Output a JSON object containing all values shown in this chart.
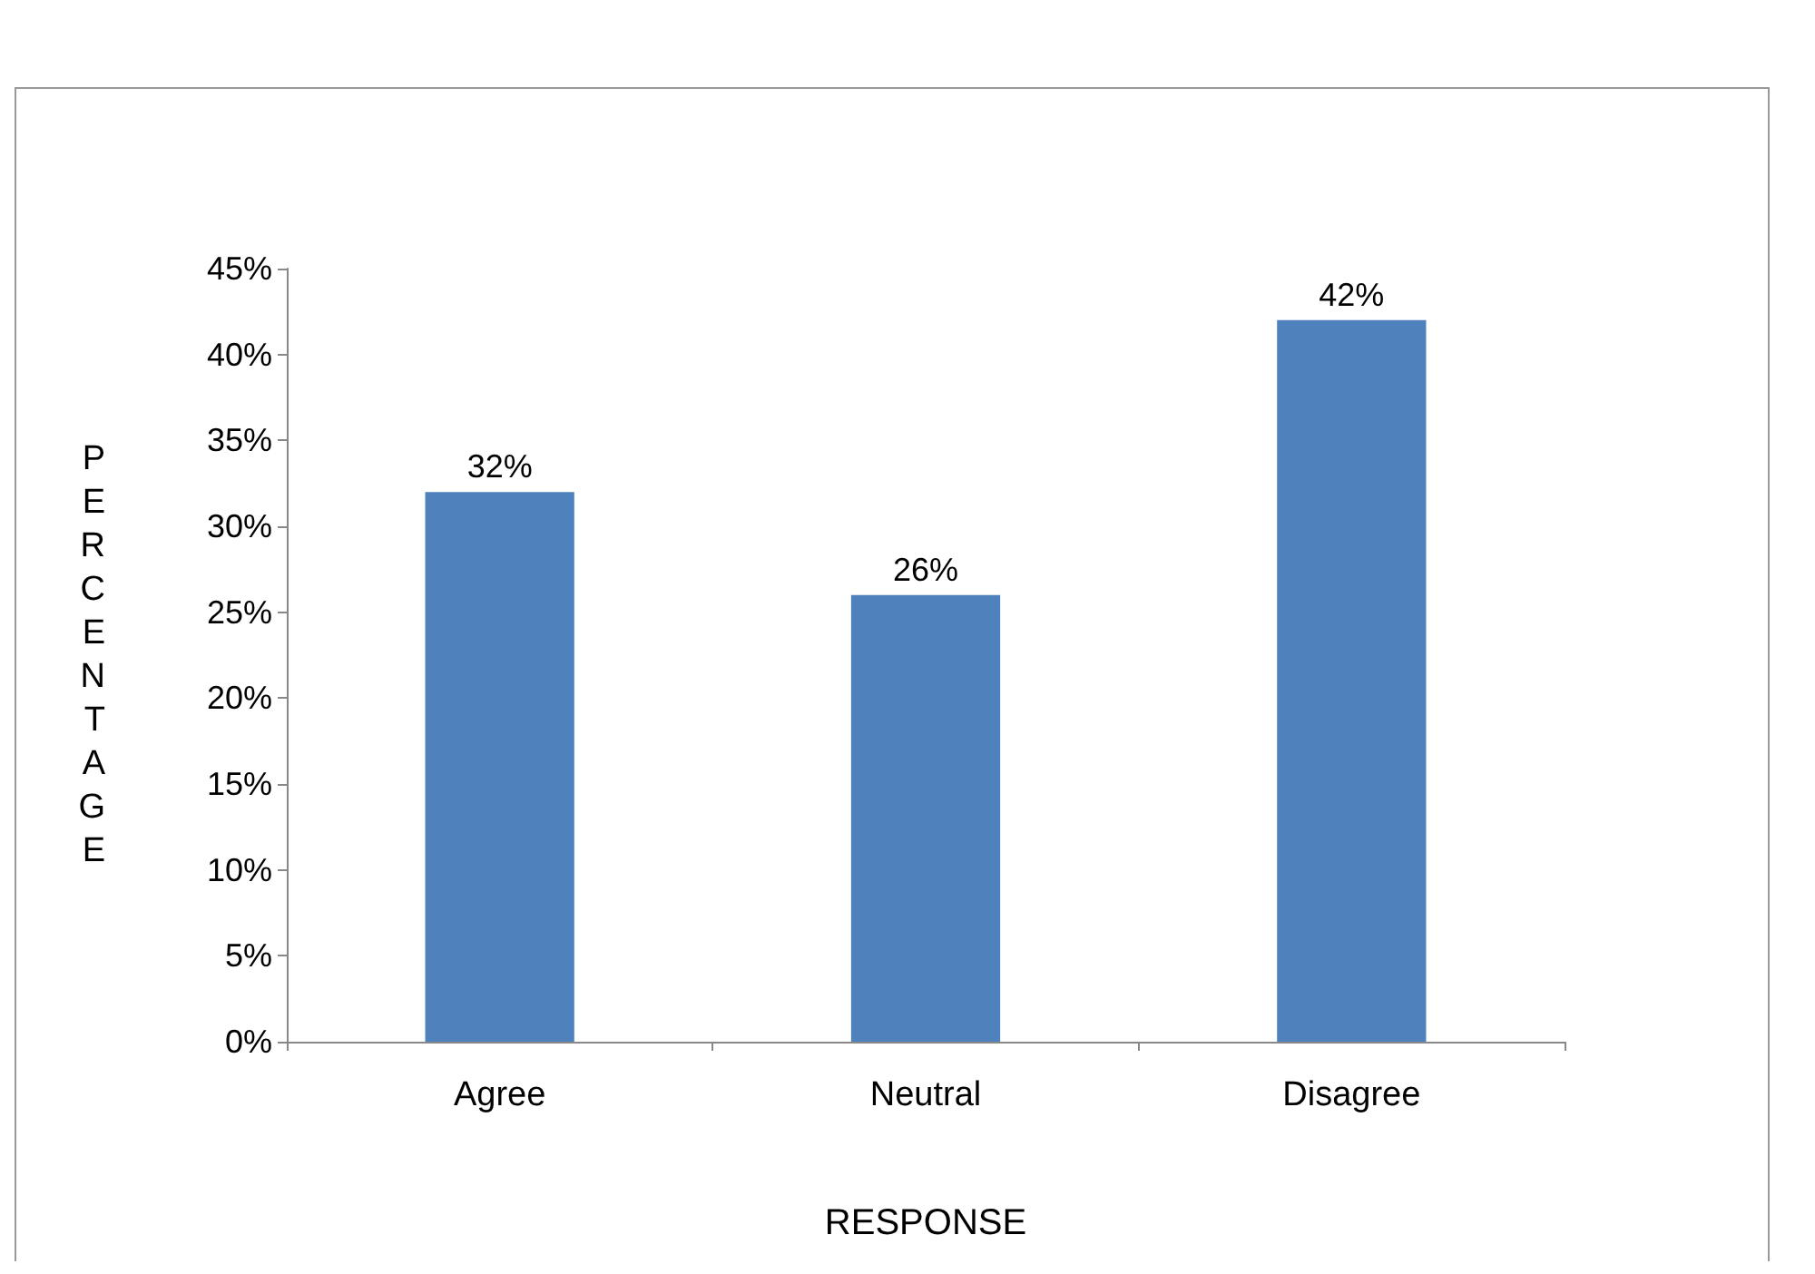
{
  "chart_data": {
    "type": "bar",
    "ylabel": "PERCENTAGE",
    "xlabel": "RESPONSE",
    "categories": [
      "Agree",
      "Neutral",
      "Disagree"
    ],
    "values": [
      32,
      26,
      42
    ],
    "value_labels": [
      "32%",
      "26%",
      "42%"
    ],
    "color": "#4f81bd",
    "ylim": [
      0,
      45
    ],
    "yticks": [
      {
        "value": 0,
        "label": "0%"
      },
      {
        "value": 5,
        "label": "5%"
      },
      {
        "value": 10,
        "label": "10%"
      },
      {
        "value": 15,
        "label": "15%"
      },
      {
        "value": 20,
        "label": "20%"
      },
      {
        "value": 25,
        "label": "25%"
      },
      {
        "value": 30,
        "label": "30%"
      },
      {
        "value": 35,
        "label": "35%"
      },
      {
        "value": 40,
        "label": "40%"
      },
      {
        "value": 45,
        "label": "45%"
      }
    ],
    "grid": false
  }
}
